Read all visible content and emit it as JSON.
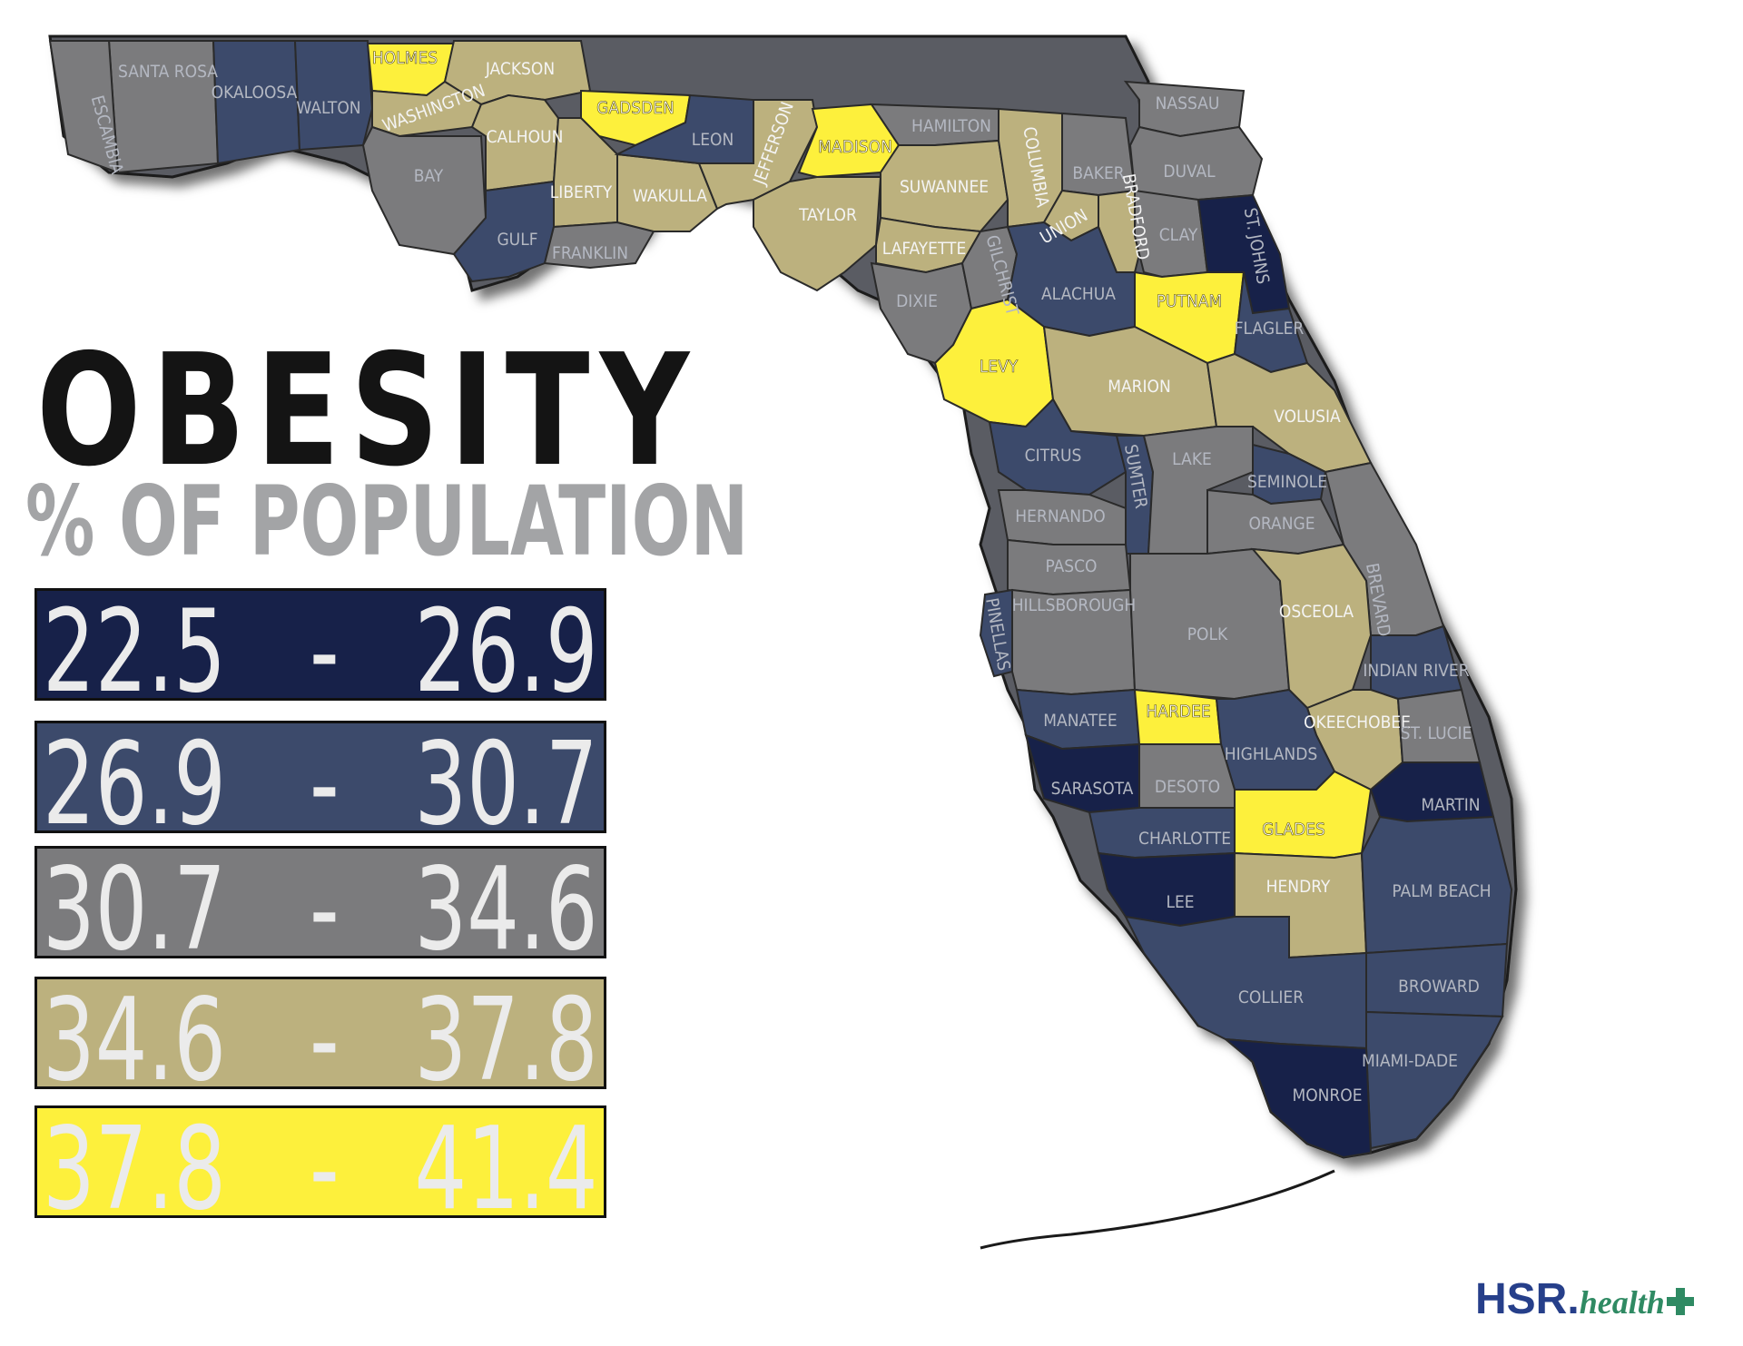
{
  "title": "OBESITY",
  "subtitle": "% OF POPULATION",
  "legend": [
    {
      "low": "22.5",
      "high": "26.9",
      "dash": "-",
      "color": "#172149"
    },
    {
      "low": "26.9",
      "high": "30.7",
      "dash": "-",
      "color": "#3c4a6b"
    },
    {
      "low": "30.7",
      "high": "34.6",
      "dash": "-",
      "color": "#7b7b7d"
    },
    {
      "low": "34.6",
      "high": "37.8",
      "dash": "-",
      "color": "#bcb17e"
    },
    {
      "low": "37.8",
      "high": "41.4",
      "dash": "-",
      "color": "#fdf03c"
    }
  ],
  "counties": [
    {
      "name": "SANTA ROSA",
      "category": 3
    },
    {
      "name": "ESCAMBIA",
      "category": 3
    },
    {
      "name": "OKALOOSA",
      "category": 2
    },
    {
      "name": "WALTON",
      "category": 2
    },
    {
      "name": "HOLMES",
      "category": 5
    },
    {
      "name": "JACKSON",
      "category": 4
    },
    {
      "name": "WASHINGTON",
      "category": 4
    },
    {
      "name": "BAY",
      "category": 3
    },
    {
      "name": "CALHOUN",
      "category": 4
    },
    {
      "name": "GADSDEN",
      "category": 5
    },
    {
      "name": "LIBERTY",
      "category": 4
    },
    {
      "name": "GULF",
      "category": 2
    },
    {
      "name": "FRANKLIN",
      "category": 3
    },
    {
      "name": "WAKULLA",
      "category": 4
    },
    {
      "name": "LEON",
      "category": 2
    },
    {
      "name": "JEFFERSON",
      "category": 4
    },
    {
      "name": "MADISON",
      "category": 5
    },
    {
      "name": "TAYLOR",
      "category": 4
    },
    {
      "name": "HAMILTON",
      "category": 3
    },
    {
      "name": "SUWANNEE",
      "category": 4
    },
    {
      "name": "LAFAYETTE",
      "category": 4
    },
    {
      "name": "COLUMBIA",
      "category": 4
    },
    {
      "name": "BAKER",
      "category": 3
    },
    {
      "name": "UNION",
      "category": 4
    },
    {
      "name": "BRADFORD",
      "category": 4
    },
    {
      "name": "NASSAU",
      "category": 3
    },
    {
      "name": "DUVAL",
      "category": 3
    },
    {
      "name": "CLAY",
      "category": 3
    },
    {
      "name": "ST. JOHNS",
      "category": 1
    },
    {
      "name": "DIXIE",
      "category": 3
    },
    {
      "name": "GILCHRIST",
      "category": 3
    },
    {
      "name": "ALACHUA",
      "category": 2
    },
    {
      "name": "PUTNAM",
      "category": 5
    },
    {
      "name": "FLAGLER",
      "category": 2
    },
    {
      "name": "LEVY",
      "category": 5
    },
    {
      "name": "MARION",
      "category": 4
    },
    {
      "name": "VOLUSIA",
      "category": 4
    },
    {
      "name": "CITRUS",
      "category": 2
    },
    {
      "name": "SUMTER",
      "category": 2
    },
    {
      "name": "LAKE",
      "category": 3
    },
    {
      "name": "SEMINOLE",
      "category": 2
    },
    {
      "name": "HERNANDO",
      "category": 3
    },
    {
      "name": "ORANGE",
      "category": 3
    },
    {
      "name": "PASCO",
      "category": 3
    },
    {
      "name": "BREVARD",
      "category": 3
    },
    {
      "name": "PINELLAS",
      "category": 2
    },
    {
      "name": "HILLSBOROUGH",
      "category": 3
    },
    {
      "name": "POLK",
      "category": 3
    },
    {
      "name": "OSCEOLA",
      "category": 4
    },
    {
      "name": "INDIAN RIVER",
      "category": 2
    },
    {
      "name": "MANATEE",
      "category": 2
    },
    {
      "name": "HARDEE",
      "category": 5
    },
    {
      "name": "OKEECHOBEE",
      "category": 4
    },
    {
      "name": "ST. LUCIE",
      "category": 3
    },
    {
      "name": "HIGHLANDS",
      "category": 2
    },
    {
      "name": "SARASOTA",
      "category": 1
    },
    {
      "name": "DESOTO",
      "category": 3
    },
    {
      "name": "MARTIN",
      "category": 1
    },
    {
      "name": "GLADES",
      "category": 5
    },
    {
      "name": "CHARLOTTE",
      "category": 2
    },
    {
      "name": "LEE",
      "category": 1
    },
    {
      "name": "HENDRY",
      "category": 4
    },
    {
      "name": "PALM BEACH",
      "category": 2
    },
    {
      "name": "COLLIER",
      "category": 2
    },
    {
      "name": "BROWARD",
      "category": 2
    },
    {
      "name": "MIAMI-DADE",
      "category": 2
    },
    {
      "name": "MONROE",
      "category": 1
    }
  ],
  "logo": {
    "brand": "HSR",
    "dot": ".",
    "sub": "health",
    "plus_icon": "plus-icon"
  }
}
